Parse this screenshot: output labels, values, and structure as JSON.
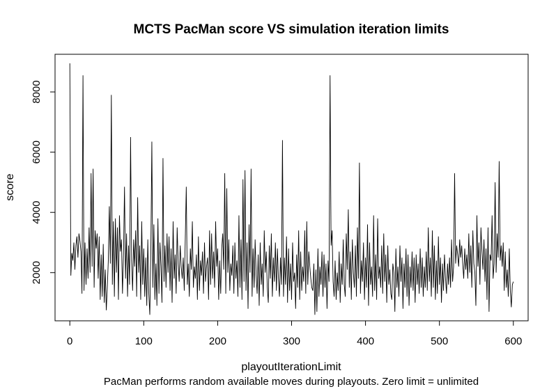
{
  "chart_data": {
    "type": "line",
    "title": "MCTS PacMan score VS simulation iteration limits",
    "xlabel": "playoutIterationLimit",
    "ylabel": "score",
    "subtitle": "PacMan performs random available moves during playouts.  Zero limit = unlimited",
    "xlim": [
      -20,
      620
    ],
    "ylim": [
      400,
      9250
    ],
    "x_ticks": [
      0,
      100,
      200,
      300,
      400,
      500,
      600
    ],
    "y_ticks": [
      2000,
      4000,
      6000,
      8000
    ],
    "series": [
      {
        "values": [
          8950,
          1900,
          2650,
          2400,
          3000,
          2100,
          2900,
          3200,
          2500,
          3300,
          3050,
          2700,
          1300,
          8550,
          1400,
          3000,
          1600,
          2800,
          1800,
          3500,
          2000,
          5300,
          2200,
          5450,
          1500,
          3400,
          2800,
          3300,
          1800,
          3200,
          1100,
          2600,
          1200,
          2950,
          1000,
          2100,
          750,
          1500,
          2400,
          4200,
          2300,
          7900,
          1600,
          3700,
          1200,
          3800,
          2000,
          3500,
          1100,
          3900,
          2700,
          3100,
          1300,
          2600,
          4850,
          1800,
          3300,
          1200,
          2900,
          1600,
          6500,
          2400,
          1400,
          3100,
          2200,
          3400,
          1200,
          4500,
          2000,
          2900,
          1100,
          3700,
          1600,
          2800,
          1200,
          2500,
          900,
          3100,
          1300,
          600,
          2700,
          6350,
          1500,
          3600,
          1100,
          2300,
          900,
          3800,
          1300,
          3000,
          2200,
          1000,
          5800,
          1700,
          2900,
          1500,
          3300,
          2000,
          3200,
          1400,
          2800,
          1000,
          3700,
          1800,
          2600,
          1300,
          3500,
          2300,
          1700,
          2900,
          2200,
          1800,
          2500,
          1400,
          3100,
          4850,
          1600,
          2300,
          1200,
          2800,
          2100,
          3700,
          1500,
          2200,
          1800,
          2600,
          1100,
          3200,
          1400,
          2400,
          1900,
          2700,
          1300,
          3000,
          1700,
          2200,
          2500,
          1100,
          3400,
          1600,
          3300,
          1800,
          2700,
          1500,
          3700,
          2200,
          2800,
          1100,
          2400,
          1300,
          2800,
          3300,
          2100,
          5300,
          1300,
          4800,
          2000,
          3100,
          1400,
          2300,
          1900,
          2900,
          1300,
          3000,
          1800,
          2400,
          1200,
          3900,
          1500,
          3100,
          1100,
          5100,
          1700,
          5400,
          1400,
          3000,
          800,
          3600,
          2000,
          5450,
          1200,
          2800,
          1500,
          3100,
          1900,
          1300,
          2600,
          900,
          3000,
          1600,
          2300,
          1200,
          3400,
          2000,
          2700,
          1500,
          1000,
          2900,
          1800,
          3300,
          1200,
          2500,
          1700,
          3000,
          1400,
          2800,
          1800,
          1200,
          2500,
          1600,
          6400,
          1200,
          2500,
          1600,
          3200,
          1000,
          2800,
          1400,
          2300,
          1100,
          3000,
          1700,
          2000,
          800,
          2600,
          1500,
          3400,
          1100,
          2700,
          1400,
          2200,
          1700,
          3400,
          1300,
          3700,
          1600,
          2700,
          2200,
          1800,
          1500,
          1400,
          2300,
          600,
          2100,
          700,
          2800,
          1200,
          2200,
          1600,
          2700,
          1200,
          2600,
          1500,
          2300,
          800,
          2400,
          1700,
          8550,
          2900,
          3400,
          1700,
          1200,
          2400,
          1100,
          2000,
          1400,
          2700,
          1000,
          2300,
          1600,
          3100,
          1600,
          1200,
          3300,
          2100,
          4100,
          1500,
          2700,
          1100,
          3100,
          2000,
          1500,
          2900,
          1200,
          3500,
          1800,
          5650,
          1300,
          2400,
          1700,
          3000,
          1100,
          2500,
          1500,
          3600,
          900,
          3000,
          1600,
          2200,
          1200,
          3900,
          1400,
          2600,
          1100,
          3800,
          1800,
          2200,
          1500,
          2900,
          1300,
          3300,
          1700,
          2600,
          1000,
          2900,
          1600,
          2100,
          1300,
          1100,
          2300,
          2000,
          700,
          2800,
          1500,
          2200,
          1200,
          2900,
          1700,
          2500,
          800,
          2300,
          1500,
          2800,
          1200,
          2600,
          900,
          2200,
          1500,
          2700,
          1400,
          2500,
          1000,
          2600,
          1600,
          2300,
          1300,
          2800,
          1500,
          2500,
          1200,
          2200,
          1500,
          2700,
          1400,
          3500,
          1700,
          2500,
          1200,
          3400,
          1500,
          2900,
          1100,
          2400,
          1300,
          3200,
          1600,
          2500,
          1000,
          2300,
          1400,
          2600,
          1800,
          1300,
          2300,
          1600,
          2500,
          1500,
          3100,
          1700,
          2200,
          5300,
          2300,
          2900,
          2600,
          2200,
          3100,
          2500,
          2900,
          2300,
          1800,
          2800,
          2100,
          2600,
          1800,
          3300,
          2000,
          2900,
          1500,
          3400,
          2300,
          2000,
          900,
          3900,
          2200,
          3000,
          1600,
          3500,
          2700,
          2100,
          3100,
          1700,
          2800,
          1100,
          3500,
          700,
          2600,
          2400,
          3900,
          1800,
          2300,
          5000,
          2000,
          3300,
          2500,
          5700,
          2400,
          2900,
          2200,
          3000,
          1400,
          2700,
          1500,
          2100,
          1200,
          2800,
          1400,
          850,
          1600,
          1700
        ]
      }
    ],
    "line_color": "#000000",
    "grid": false
  }
}
